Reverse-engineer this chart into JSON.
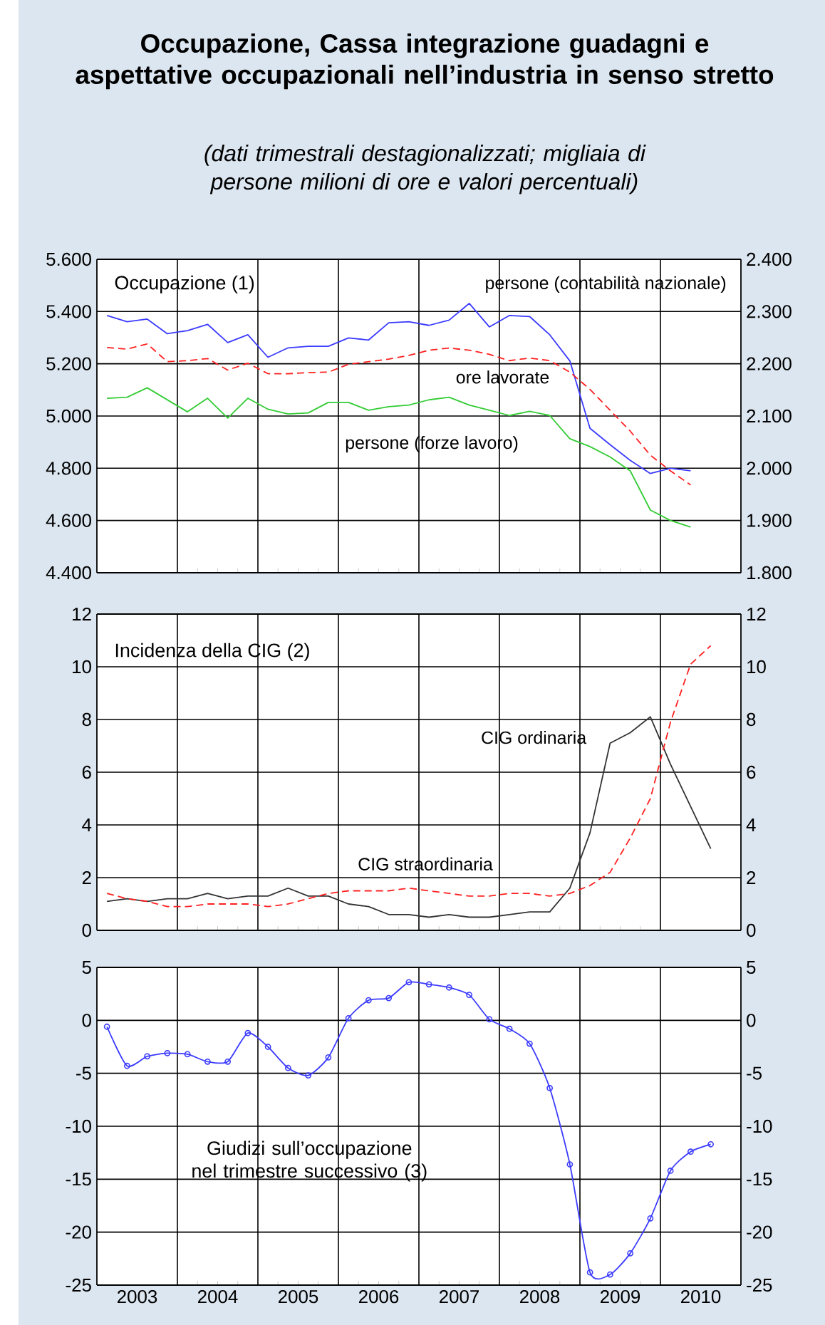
{
  "chart_data": [
    {
      "type": "line",
      "title": "Occupazione, Cassa integrazione guadagni e aspettative occupazionali nell’industria in senso stretto",
      "subtitle": "(dati trimestrali destagionalizzati; migliaia di persone milioni di ore e valori percentuali)",
      "annotations": [
        "Occupazione (1)"
      ],
      "x": [
        2003.125,
        2003.375,
        2003.625,
        2003.875,
        2004.125,
        2004.375,
        2004.625,
        2004.875,
        2005.125,
        2005.375,
        2005.625,
        2005.875,
        2006.125,
        2006.375,
        2006.625,
        2006.875,
        2007.125,
        2007.375,
        2007.625,
        2007.875,
        2008.125,
        2008.375,
        2008.625,
        2008.875,
        2009.125,
        2009.375,
        2009.625,
        2009.875,
        2010.125,
        2010.375
      ],
      "series": [
        {
          "name": "persone (contabilità nazionale)",
          "color": "#3b3bff",
          "line_style": "solid",
          "values": [
            5385,
            5361,
            5371,
            5315,
            5327,
            5351,
            5281,
            5311,
            5225,
            5261,
            5267,
            5267,
            5299,
            5291,
            5357,
            5361,
            5347,
            5367,
            5431,
            5341,
            5385,
            5381,
            5311,
            5211,
            4953,
            4890,
            4830,
            4780,
            4800,
            4790
          ]
        },
        {
          "name": "ore lavorate",
          "color": "#ff2020",
          "line_style": "dashed",
          "axis": "y2",
          "values": [
            2231,
            2228,
            2238,
            2204,
            2206,
            2210,
            2188,
            2201,
            2181,
            2181,
            2183,
            2184,
            2199,
            2204,
            2209,
            2216,
            2226,
            2230,
            2226,
            2218,
            2206,
            2211,
            2206,
            2184,
            2151,
            2111,
            2071,
            2025,
            1995,
            1968
          ]
        },
        {
          "name": "persone (forze lavoro)",
          "color": "#33cc33",
          "line_style": "solid",
          "values": [
            5068,
            5072,
            5108,
            5062,
            5016,
            5068,
            4992,
            5068,
            5026,
            5008,
            5012,
            5052,
            5052,
            5022,
            5036,
            5042,
            5062,
            5072,
            5042,
            5022,
            5002,
            5018,
            5002,
            4913,
            4883,
            4843,
            4790,
            4640,
            4600,
            4575
          ]
        }
      ],
      "xlim": [
        2003,
        2011
      ],
      "xticks": [
        {
          "value": 2004,
          "label": null
        },
        {
          "value": 2005,
          "label": null
        },
        {
          "value": 2006,
          "label": null
        },
        {
          "value": 2007,
          "label": null
        },
        {
          "value": 2008,
          "label": null
        },
        {
          "value": 2009,
          "label": null
        },
        {
          "value": 2010,
          "label": null
        }
      ],
      "ylim": [
        4400,
        5600
      ],
      "yticks": [
        {
          "value": 4400,
          "label": "4.400"
        },
        {
          "value": 4600,
          "label": "4.600"
        },
        {
          "value": 4800,
          "label": "4.800"
        },
        {
          "value": 5000,
          "label": "5.000"
        },
        {
          "value": 5200,
          "label": "5.200"
        },
        {
          "value": 5400,
          "label": "5.400"
        },
        {
          "value": 5600,
          "label": "5.600"
        }
      ],
      "y2lim": [
        1800,
        2400
      ],
      "y2ticks": [
        {
          "value": 1800,
          "label": "1.800"
        },
        {
          "value": 1900,
          "label": "1.900"
        },
        {
          "value": 2000,
          "label": "2.000"
        },
        {
          "value": 2100,
          "label": "2.100"
        },
        {
          "value": 2200,
          "label": "2.200"
        },
        {
          "value": 2300,
          "label": "2.300"
        },
        {
          "value": 2400,
          "label": "2.400"
        }
      ],
      "grid": true,
      "legend": false,
      "tick_labels": "y"
    },
    {
      "type": "line",
      "annotations": [
        "Incidenza della CIG (2)"
      ],
      "x": [
        2003.125,
        2003.375,
        2003.625,
        2003.875,
        2004.125,
        2004.375,
        2004.625,
        2004.875,
        2005.125,
        2005.375,
        2005.625,
        2005.875,
        2006.125,
        2006.375,
        2006.625,
        2006.875,
        2007.125,
        2007.375,
        2007.625,
        2007.875,
        2008.125,
        2008.375,
        2008.625,
        2008.875,
        2009.125,
        2009.375,
        2009.625,
        2009.875,
        2010.125,
        2010.375,
        2010.625
      ],
      "series": [
        {
          "name": "CIG ordinaria",
          "color": "#333333",
          "line_style": "solid",
          "values": [
            1.1,
            1.2,
            1.1,
            1.2,
            1.2,
            1.4,
            1.2,
            1.3,
            1.3,
            1.6,
            1.3,
            1.3,
            1.0,
            0.9,
            0.6,
            0.6,
            0.5,
            0.6,
            0.5,
            0.5,
            0.6,
            0.7,
            0.7,
            1.6,
            3.7,
            7.1,
            7.5,
            8.1,
            6.3,
            4.7,
            3.1
          ]
        },
        {
          "name": "CIG straordinaria",
          "color": "#ff2020",
          "line_style": "dashed",
          "values": [
            1.4,
            1.2,
            1.1,
            0.9,
            0.9,
            1.0,
            1.0,
            1.0,
            0.9,
            1.0,
            1.2,
            1.4,
            1.5,
            1.5,
            1.5,
            1.6,
            1.5,
            1.4,
            1.3,
            1.3,
            1.4,
            1.4,
            1.3,
            1.4,
            1.7,
            2.2,
            3.5,
            5.0,
            7.9,
            10.1,
            10.8
          ]
        }
      ],
      "xlim": [
        2003,
        2011
      ],
      "xticks": [
        {
          "value": 2004,
          "label": null
        },
        {
          "value": 2005,
          "label": null
        },
        {
          "value": 2006,
          "label": null
        },
        {
          "value": 2007,
          "label": null
        },
        {
          "value": 2008,
          "label": null
        },
        {
          "value": 2009,
          "label": null
        },
        {
          "value": 2010,
          "label": null
        }
      ],
      "ylim": [
        0,
        12
      ],
      "yticks": [
        0,
        2,
        4,
        6,
        8,
        10,
        12
      ],
      "y2lim": [
        0,
        12
      ],
      "y2ticks": [
        0,
        2,
        4,
        6,
        8,
        10,
        12
      ],
      "grid": true,
      "legend": false,
      "tick_labels": "y"
    },
    {
      "type": "line",
      "annotations": [
        "Giudizi sull’occupazione nel trimestre successivo (3)"
      ],
      "x": [
        2003.125,
        2003.375,
        2003.625,
        2003.875,
        2004.125,
        2004.375,
        2004.625,
        2004.875,
        2005.125,
        2005.375,
        2005.625,
        2005.875,
        2006.125,
        2006.375,
        2006.625,
        2006.875,
        2007.125,
        2007.375,
        2007.625,
        2007.875,
        2008.125,
        2008.375,
        2008.625,
        2008.875,
        2009.125,
        2009.375,
        2009.625,
        2009.875,
        2010.125,
        2010.375,
        2010.625
      ],
      "series": [
        {
          "color": "#3b3bff",
          "line_style": "solid",
          "marker": "circle",
          "values": [
            -0.6,
            -4.3,
            -3.4,
            -3.1,
            -3.2,
            -3.9,
            -3.9,
            -1.2,
            -2.5,
            -4.5,
            -5.2,
            -3.5,
            0.2,
            1.9,
            2.1,
            3.6,
            3.4,
            3.1,
            2.4,
            0.1,
            -0.8,
            -2.2,
            -6.4,
            -13.6,
            -23.8,
            -24.0,
            -22.0,
            -18.7,
            -14.2,
            -12.4,
            -11.7
          ]
        }
      ],
      "xlim": [
        2003,
        2011
      ],
      "xticks": [
        {
          "value": 2004,
          "label": null
        },
        {
          "value": 2005,
          "label": null
        },
        {
          "value": 2006,
          "label": null
        },
        {
          "value": 2007,
          "label": null
        },
        {
          "value": 2008,
          "label": null
        },
        {
          "value": 2009,
          "label": null
        },
        {
          "value": 2010,
          "label": null
        },
        {
          "value": 2003.5,
          "label": "2003"
        },
        {
          "value": 2004.5,
          "label": "2004"
        },
        {
          "value": 2005.5,
          "label": "2005"
        },
        {
          "value": 2006.5,
          "label": "2006"
        },
        {
          "value": 2007.5,
          "label": "2007"
        },
        {
          "value": 2008.5,
          "label": "2008"
        },
        {
          "value": 2009.5,
          "label": "2009"
        },
        {
          "value": 2010.5,
          "label": "2010"
        }
      ],
      "ylim": [
        -25,
        5
      ],
      "yticks": [
        -25,
        -20,
        -15,
        -10,
        -5,
        0,
        5
      ],
      "y2lim": [
        -25,
        5
      ],
      "y2ticks": [
        -25,
        -20,
        -15,
        -10,
        -5,
        0,
        5
      ],
      "grid": true,
      "legend": false
    }
  ]
}
